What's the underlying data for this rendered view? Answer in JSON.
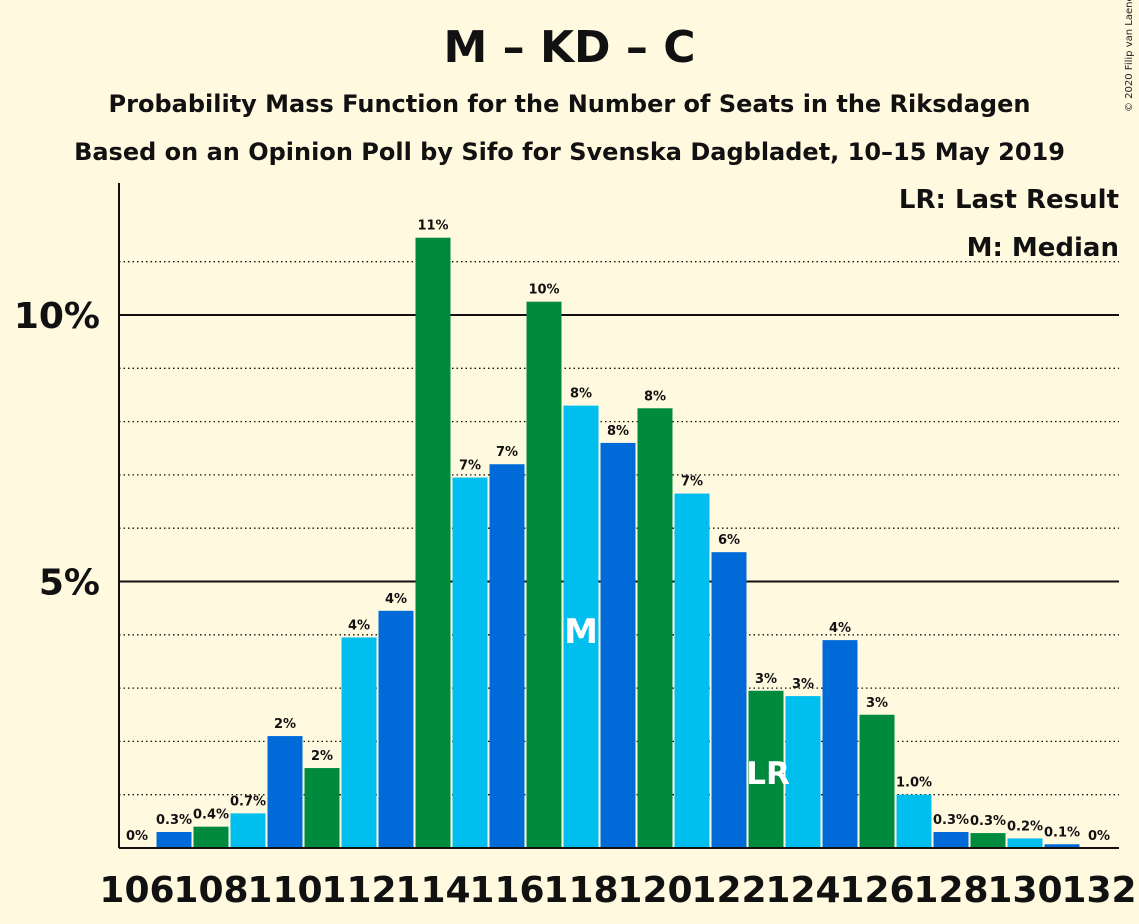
{
  "chart_data": {
    "type": "bar",
    "title": "M – KD – C",
    "subtitle": "Probability Mass Function for the Number of Seats in the Riksdagen",
    "subtitle2": "Based on an Opinion Poll by Sifo for Svenska Dagbladet, 10–15 May 2019",
    "copyright": "© 2020 Filip van Laenen",
    "legend": [
      "LR: Last Result",
      "M: Median"
    ],
    "x": [
      106,
      107,
      108,
      109,
      110,
      111,
      112,
      113,
      114,
      115,
      116,
      117,
      118,
      119,
      120,
      121,
      122,
      123,
      124,
      125,
      126,
      127,
      128,
      129,
      130,
      131,
      132
    ],
    "values": [
      0,
      0.3,
      0.4,
      0.65,
      2.1,
      1.5,
      3.95,
      4.45,
      11.45,
      6.95,
      7.2,
      10.25,
      8.3,
      7.6,
      8.25,
      6.65,
      5.55,
      2.95,
      2.85,
      3.9,
      2.5,
      1.0,
      0.3,
      0.28,
      0.18,
      0.07,
      0
    ],
    "labels": [
      "0%",
      "0.3%",
      "0.4%",
      "0.7%",
      "2%",
      "2%",
      "4%",
      "4%",
      "11%",
      "7%",
      "7%",
      "10%",
      "8%",
      "8%",
      "8%",
      "7%",
      "6%",
      "3%",
      "3%",
      "4%",
      "3%",
      "1.0%",
      "0.3%",
      "0.3%",
      "0.2%",
      "0.1%",
      "0%"
    ],
    "x_tick_labels": [
      "106",
      "108",
      "110",
      "112",
      "114",
      "116",
      "118",
      "120",
      "122",
      "124",
      "126",
      "128",
      "130",
      "132"
    ],
    "y_tick_labels": [
      "5%",
      "10%"
    ],
    "ylim": [
      0,
      12.5
    ],
    "median_seat": 118,
    "median_marker": "M",
    "last_result_seat": 123,
    "last_result_marker": "LR",
    "colors": [
      "#00BFEF",
      "#006AD9",
      "#008A3E"
    ],
    "legend_position": "top-right",
    "grid": true
  }
}
